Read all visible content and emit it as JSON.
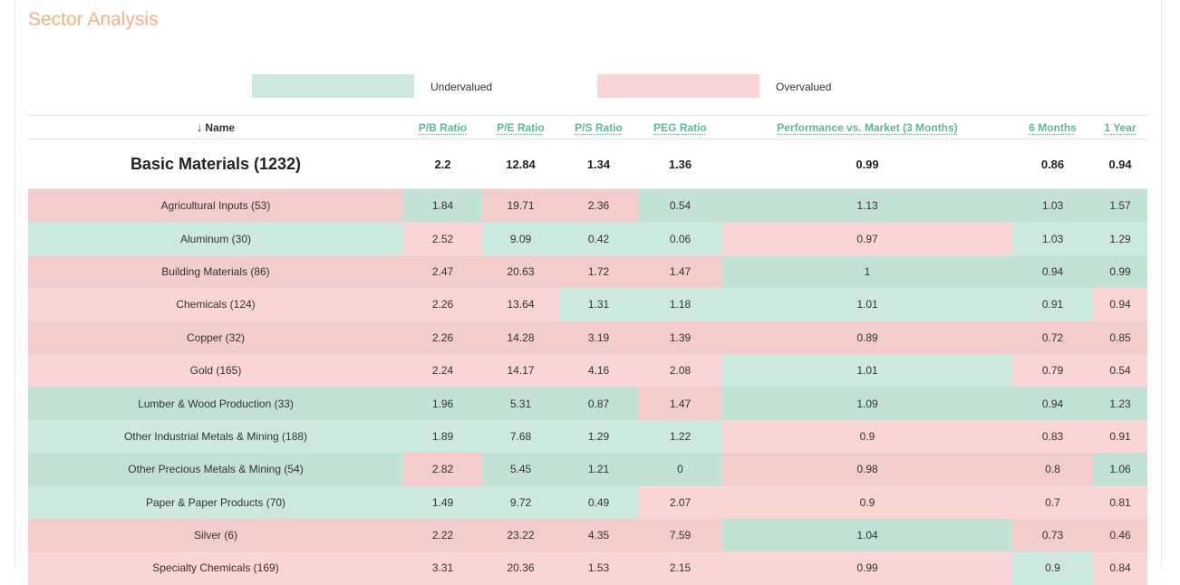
{
  "page": {
    "title": "Sector Analysis"
  },
  "legend": {
    "undervalued": {
      "label": "Undervalued",
      "color": "#cde8df"
    },
    "overvalued": {
      "label": "Overvalued",
      "color": "#fad5d5"
    }
  },
  "table": {
    "sort_arrow": "↓",
    "headers": {
      "name": "Name",
      "pb": "P/B Ratio",
      "pe": "P/E Ratio",
      "ps": "P/S Ratio",
      "peg": "PEG Ratio",
      "perf3": "Performance vs. Market (3 Months)",
      "m6": "6 Months",
      "y1": "1 Year"
    },
    "summary": {
      "name": "Basic Materials (1232)",
      "pb": "2.2",
      "pe": "12.84",
      "ps": "1.34",
      "peg": "1.36",
      "perf3": "0.99",
      "m6": "0.86",
      "y1": "0.94"
    },
    "rows": [
      {
        "name": "Agricultural Inputs (53)",
        "pb": "1.84",
        "pe": "19.71",
        "ps": "2.36",
        "peg": "0.54",
        "perf3": "1.13",
        "m6": "1.03",
        "y1": "1.57"
      },
      {
        "name": "Aluminum (30)",
        "pb": "2.52",
        "pe": "9.09",
        "ps": "0.42",
        "peg": "0.06",
        "perf3": "0.97",
        "m6": "1.03",
        "y1": "1.29"
      },
      {
        "name": "Building Materials (86)",
        "pb": "2.47",
        "pe": "20.63",
        "ps": "1.72",
        "peg": "1.47",
        "perf3": "1",
        "m6": "0.94",
        "y1": "0.99"
      },
      {
        "name": "Chemicals (124)",
        "pb": "2.26",
        "pe": "13.64",
        "ps": "1.31",
        "peg": "1.18",
        "perf3": "1.01",
        "m6": "0.91",
        "y1": "0.94"
      },
      {
        "name": "Copper (32)",
        "pb": "2.26",
        "pe": "14.28",
        "ps": "3.19",
        "peg": "1.39",
        "perf3": "0.89",
        "m6": "0.72",
        "y1": "0.85"
      },
      {
        "name": "Gold (165)",
        "pb": "2.24",
        "pe": "14.17",
        "ps": "4.16",
        "peg": "2.08",
        "perf3": "1.01",
        "m6": "0.79",
        "y1": "0.54"
      },
      {
        "name": "Lumber & Wood Production (33)",
        "pb": "1.96",
        "pe": "5.31",
        "ps": "0.87",
        "peg": "1.47",
        "perf3": "1.09",
        "m6": "0.94",
        "y1": "1.23"
      },
      {
        "name": "Other Industrial Metals & Mining (188)",
        "pb": "1.89",
        "pe": "7.68",
        "ps": "1.29",
        "peg": "1.22",
        "perf3": "0.9",
        "m6": "0.83",
        "y1": "0.91"
      },
      {
        "name": "Other Precious Metals & Mining (54)",
        "pb": "2.82",
        "pe": "5.45",
        "ps": "1.21",
        "peg": "0",
        "perf3": "0.98",
        "m6": "0.8",
        "y1": "1.06"
      },
      {
        "name": "Paper & Paper Products (70)",
        "pb": "1.49",
        "pe": "9.72",
        "ps": "0.49",
        "peg": "2.07",
        "perf3": "0.9",
        "m6": "0.7",
        "y1": "0.81"
      },
      {
        "name": "Silver (6)",
        "pb": "2.22",
        "pe": "23.22",
        "ps": "4.35",
        "peg": "7.59",
        "perf3": "1.04",
        "m6": "0.73",
        "y1": "0.46"
      },
      {
        "name": "Specialty Chemicals (169)",
        "pb": "3.31",
        "pe": "20.36",
        "ps": "1.53",
        "peg": "2.15",
        "perf3": "0.99",
        "m6": "0.9",
        "y1": "0.84"
      }
    ]
  }
}
